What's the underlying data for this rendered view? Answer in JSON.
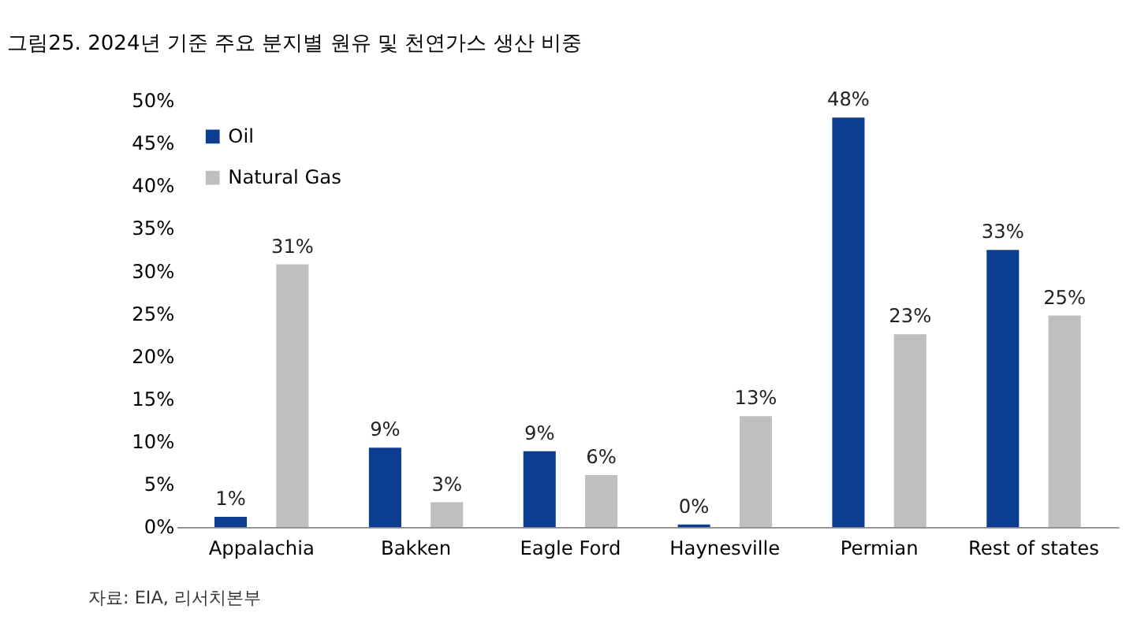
{
  "chart_data": {
    "type": "bar",
    "title": "그림25. 2024년 기준 주요 분지별 원유 및 천연가스 생산 비중",
    "categories": [
      "Appalachia",
      "Bakken",
      "Eagle Ford",
      "Haynesville",
      "Permian",
      "Rest of states"
    ],
    "series": [
      {
        "name": "Oil",
        "color": "#0b3e91",
        "values": [
          1.2,
          9.3,
          8.9,
          0.3,
          48,
          32.5
        ],
        "value_labels": [
          "1%",
          "9%",
          "9%",
          "0%",
          "48%",
          "33%"
        ]
      },
      {
        "name": "Natural Gas",
        "color": "#bfbfbf",
        "values": [
          30.8,
          2.9,
          6.1,
          13,
          22.6,
          24.8
        ],
        "value_labels": [
          "31%",
          "3%",
          "6%",
          "13%",
          "23%",
          "25%"
        ]
      }
    ],
    "ylim": [
      0,
      50
    ],
    "yticks": [
      {
        "value": 0,
        "label": "0%"
      },
      {
        "value": 5,
        "label": "5%"
      },
      {
        "value": 10,
        "label": "10%"
      },
      {
        "value": 15,
        "label": "15%"
      },
      {
        "value": 20,
        "label": "20%"
      },
      {
        "value": 25,
        "label": "25%"
      },
      {
        "value": 30,
        "label": "30%"
      },
      {
        "value": 35,
        "label": "35%"
      },
      {
        "value": 40,
        "label": "40%"
      },
      {
        "value": 45,
        "label": "45%"
      },
      {
        "value": 50,
        "label": "50%"
      }
    ],
    "grid": false,
    "legend": "top left",
    "annotations": [
      "자료: EIA, 리서치본부"
    ]
  }
}
